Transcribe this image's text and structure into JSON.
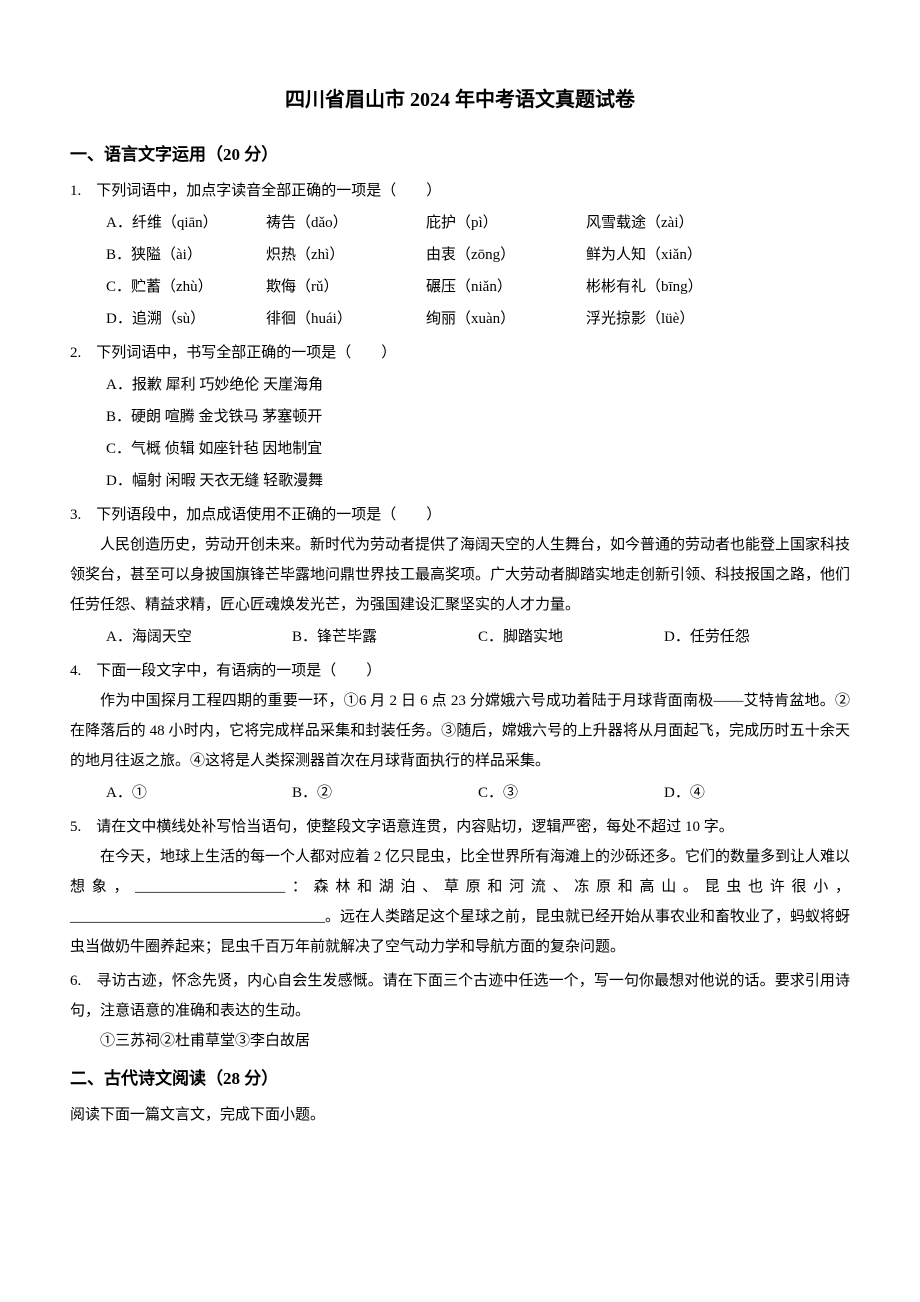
{
  "title": "四川省眉山市 2024 年中考语文真题试卷",
  "section1": {
    "header": "一、语言文字运用（20 分）",
    "q1": {
      "stem": "1.　下列词语中，加点字读音全部正确的一项是（　　）",
      "rows": [
        {
          "a": "A．纤维（qiān）",
          "b": "祷告（dǎo）",
          "c": "庇护（pì）",
          "d": "风雪载途（zài）"
        },
        {
          "a": "B．狭隘（ài）",
          "b": "炽热（zhì）",
          "c": "由衷（zōng）",
          "d": "鲜为人知（xiǎn）"
        },
        {
          "a": "C．贮蓄（zhù）",
          "b": "欺侮（rǔ）",
          "c": "碾压（niǎn）",
          "d": "彬彬有礼（bīng）"
        },
        {
          "a": "D．追溯（sù）",
          "b": "徘徊（huái）",
          "c": "绚丽（xuàn）",
          "d": "浮光掠影（lüè）"
        }
      ]
    },
    "q2": {
      "stem": "2.　下列词语中，书写全部正确的一项是（　　）",
      "options": [
        "A．报歉  犀利  巧妙绝伦  天崖海角",
        "B．硬朗  喧腾  金戈铁马  茅塞顿开",
        "C．气概  侦辑  如座针毡  因地制宜",
        "D．幅射  闲暇  天衣无缝  轻歌漫舞"
      ]
    },
    "q3": {
      "stem": "3.　下列语段中，加点成语使用不正确的一项是（　　）",
      "passage": "人民创造历史，劳动开创未来。新时代为劳动者提供了海阔天空的人生舞台，如今普通的劳动者也能登上国家科技领奖台，甚至可以身披国旗锋芒毕露地问鼎世界技工最高奖项。广大劳动者脚踏实地走创新引领、科技报国之路，他们任劳任怨、精益求精，匠心匠魂焕发光芒，为强国建设汇聚坚实的人才力量。",
      "opts": {
        "a": "A．海阔天空",
        "b": "B．锋芒毕露",
        "c": "C．脚踏实地",
        "d": "D．任劳任怨"
      }
    },
    "q4": {
      "stem": "4.　下面一段文字中，有语病的一项是（　　）",
      "passage": "作为中国探月工程四期的重要一环，①6 月 2 日 6 点 23 分嫦娥六号成功着陆于月球背面南极——艾特肯盆地。②在降落后的 48 小时内，它将完成样品采集和封装任务。③随后，嫦娥六号的上升器将从月面起飞，完成历时五十余天的地月往返之旅。④这将是人类探测器首次在月球背面执行的样品采集。",
      "opts": {
        "a": "A．①",
        "b": "B．②",
        "c": "C．③",
        "d": "D．④"
      }
    },
    "q5": {
      "stem": "5.　请在文中横线处补写恰当语句，使整段文字语意连贯，内容贴切，逻辑严密，每处不超过 10 字。",
      "passage_pre": "在今天，地球上生活的每一个人都对应着 2 亿只昆虫，比全世界所有海滩上的沙砾还多。它们的数量多到让人难以想象，",
      "passage_mid": "：森林和湖泊、草原和河流、冻原和高山。昆虫也许很小，",
      "passage_post": "。远在人类踏足这个星球之前，昆虫就已经开始从事农业和畜牧业了，蚂蚁将蚜虫当做奶牛圈养起来；昆虫千百万年前就解决了空气动力学和导航方面的复杂问题。",
      "blank1": "____________________",
      "blank2": "__________________________________"
    },
    "q6": {
      "stem": "6.　寻访古迹，怀念先贤，内心自会生发感慨。请在下面三个古迹中任选一个，写一句你最想对他说的话。要求引用诗句，注意语意的准确和表达的生动。",
      "options_line": "①三苏祠②杜甫草堂③李白故居"
    }
  },
  "section2": {
    "header": "二、古代诗文阅读（28 分）",
    "line": "阅读下面一篇文言文，完成下面小题。"
  }
}
